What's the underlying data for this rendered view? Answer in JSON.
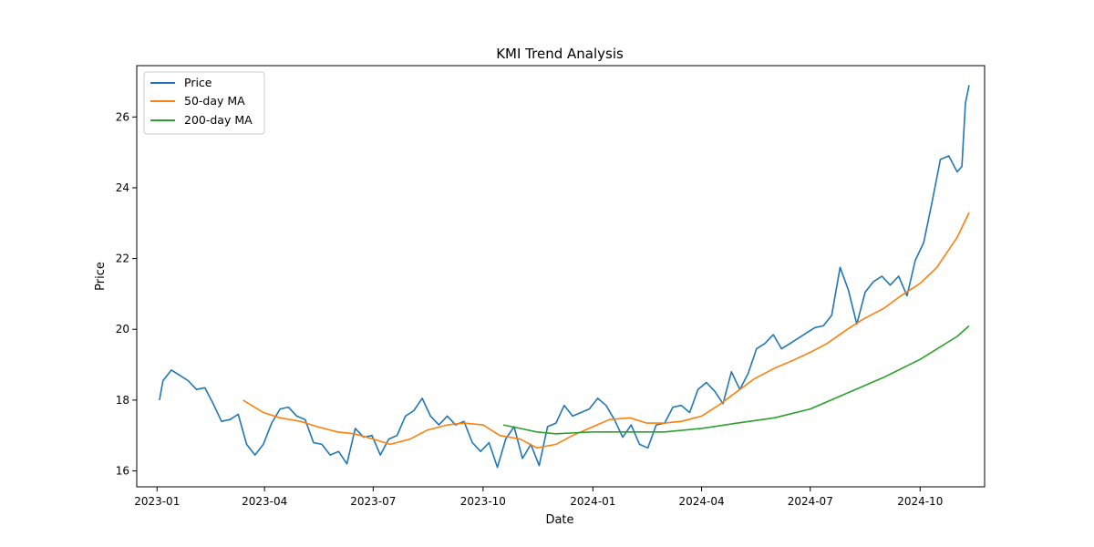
{
  "chart_data": {
    "type": "line",
    "title": "KMI Trend Analysis",
    "xlabel": "Date",
    "ylabel": "Price",
    "x_ticks": [
      "2023-01",
      "2023-04",
      "2023-07",
      "2023-10",
      "2024-01",
      "2024-04",
      "2024-07",
      "2024-10"
    ],
    "y_ticks": [
      16,
      18,
      20,
      22,
      24,
      26
    ],
    "xlim": [
      "2022-12-15",
      "2024-11-24"
    ],
    "ylim": [
      15.55,
      27.45
    ],
    "grid": false,
    "legend_position": "top-left",
    "series": [
      {
        "name": "Price",
        "color": "#1f77b4",
        "points": [
          [
            "2023-01-03",
            18.0
          ],
          [
            "2023-01-06",
            18.55
          ],
          [
            "2023-01-13",
            18.85
          ],
          [
            "2023-01-20",
            18.7
          ],
          [
            "2023-01-27",
            18.55
          ],
          [
            "2023-02-03",
            18.3
          ],
          [
            "2023-02-10",
            18.35
          ],
          [
            "2023-02-17",
            17.9
          ],
          [
            "2023-02-24",
            17.4
          ],
          [
            "2023-03-03",
            17.45
          ],
          [
            "2023-03-10",
            17.6
          ],
          [
            "2023-03-17",
            16.75
          ],
          [
            "2023-03-24",
            16.45
          ],
          [
            "2023-03-31",
            16.75
          ],
          [
            "2023-04-07",
            17.35
          ],
          [
            "2023-04-14",
            17.75
          ],
          [
            "2023-04-21",
            17.8
          ],
          [
            "2023-04-28",
            17.55
          ],
          [
            "2023-05-05",
            17.45
          ],
          [
            "2023-05-12",
            16.8
          ],
          [
            "2023-05-19",
            16.75
          ],
          [
            "2023-05-26",
            16.45
          ],
          [
            "2023-06-02",
            16.55
          ],
          [
            "2023-06-09",
            16.2
          ],
          [
            "2023-06-16",
            17.2
          ],
          [
            "2023-06-23",
            16.95
          ],
          [
            "2023-06-30",
            17.0
          ],
          [
            "2023-07-07",
            16.45
          ],
          [
            "2023-07-14",
            16.9
          ],
          [
            "2023-07-21",
            17.0
          ],
          [
            "2023-07-28",
            17.55
          ],
          [
            "2023-08-04",
            17.7
          ],
          [
            "2023-08-11",
            18.05
          ],
          [
            "2023-08-18",
            17.55
          ],
          [
            "2023-08-25",
            17.3
          ],
          [
            "2023-09-01",
            17.55
          ],
          [
            "2023-09-08",
            17.3
          ],
          [
            "2023-09-15",
            17.4
          ],
          [
            "2023-09-22",
            16.8
          ],
          [
            "2023-09-29",
            16.55
          ],
          [
            "2023-10-06",
            16.8
          ],
          [
            "2023-10-13",
            16.1
          ],
          [
            "2023-10-20",
            16.9
          ],
          [
            "2023-10-27",
            17.25
          ],
          [
            "2023-11-03",
            16.35
          ],
          [
            "2023-11-10",
            16.75
          ],
          [
            "2023-11-17",
            16.15
          ],
          [
            "2023-11-24",
            17.25
          ],
          [
            "2023-12-01",
            17.35
          ],
          [
            "2023-12-08",
            17.85
          ],
          [
            "2023-12-15",
            17.55
          ],
          [
            "2023-12-22",
            17.65
          ],
          [
            "2023-12-29",
            17.75
          ],
          [
            "2024-01-05",
            18.05
          ],
          [
            "2024-01-12",
            17.85
          ],
          [
            "2024-01-19",
            17.45
          ],
          [
            "2024-01-26",
            16.95
          ],
          [
            "2024-02-02",
            17.3
          ],
          [
            "2024-02-09",
            16.75
          ],
          [
            "2024-02-16",
            16.65
          ],
          [
            "2024-02-23",
            17.3
          ],
          [
            "2024-03-01",
            17.35
          ],
          [
            "2024-03-08",
            17.8
          ],
          [
            "2024-03-15",
            17.85
          ],
          [
            "2024-03-22",
            17.65
          ],
          [
            "2024-03-29",
            18.3
          ],
          [
            "2024-04-05",
            18.5
          ],
          [
            "2024-04-12",
            18.25
          ],
          [
            "2024-04-19",
            17.9
          ],
          [
            "2024-04-26",
            18.8
          ],
          [
            "2024-05-03",
            18.3
          ],
          [
            "2024-05-10",
            18.75
          ],
          [
            "2024-05-17",
            19.45
          ],
          [
            "2024-05-24",
            19.6
          ],
          [
            "2024-05-31",
            19.85
          ],
          [
            "2024-06-07",
            19.45
          ],
          [
            "2024-06-14",
            19.6
          ],
          [
            "2024-06-21",
            19.75
          ],
          [
            "2024-06-28",
            19.9
          ],
          [
            "2024-07-05",
            20.05
          ],
          [
            "2024-07-12",
            20.1
          ],
          [
            "2024-07-19",
            20.4
          ],
          [
            "2024-07-26",
            21.75
          ],
          [
            "2024-08-02",
            21.1
          ],
          [
            "2024-08-09",
            20.15
          ],
          [
            "2024-08-16",
            21.05
          ],
          [
            "2024-08-23",
            21.35
          ],
          [
            "2024-08-30",
            21.5
          ],
          [
            "2024-09-06",
            21.25
          ],
          [
            "2024-09-13",
            21.5
          ],
          [
            "2024-09-20",
            20.95
          ],
          [
            "2024-09-27",
            21.95
          ],
          [
            "2024-10-04",
            22.45
          ],
          [
            "2024-10-11",
            23.6
          ],
          [
            "2024-10-18",
            24.8
          ],
          [
            "2024-10-25",
            24.9
          ],
          [
            "2024-11-01",
            24.45
          ],
          [
            "2024-11-05",
            24.6
          ],
          [
            "2024-11-08",
            26.4
          ],
          [
            "2024-11-11",
            26.9
          ]
        ]
      },
      {
        "name": "50-day MA",
        "color": "#ff7f0e",
        "points": [
          [
            "2023-03-14",
            18.0
          ],
          [
            "2023-03-31",
            17.65
          ],
          [
            "2023-04-14",
            17.5
          ],
          [
            "2023-05-01",
            17.4
          ],
          [
            "2023-05-15",
            17.25
          ],
          [
            "2023-06-01",
            17.1
          ],
          [
            "2023-06-15",
            17.05
          ],
          [
            "2023-07-01",
            16.9
          ],
          [
            "2023-07-15",
            16.75
          ],
          [
            "2023-08-01",
            16.9
          ],
          [
            "2023-08-15",
            17.15
          ],
          [
            "2023-09-01",
            17.3
          ],
          [
            "2023-09-15",
            17.35
          ],
          [
            "2023-10-01",
            17.3
          ],
          [
            "2023-10-15",
            17.0
          ],
          [
            "2023-11-01",
            16.9
          ],
          [
            "2023-11-15",
            16.65
          ],
          [
            "2023-12-01",
            16.75
          ],
          [
            "2023-12-15",
            17.0
          ],
          [
            "2024-01-01",
            17.25
          ],
          [
            "2024-01-15",
            17.45
          ],
          [
            "2024-02-01",
            17.5
          ],
          [
            "2024-02-15",
            17.35
          ],
          [
            "2024-03-01",
            17.35
          ],
          [
            "2024-03-15",
            17.4
          ],
          [
            "2024-04-01",
            17.55
          ],
          [
            "2024-04-15",
            17.85
          ],
          [
            "2024-05-01",
            18.25
          ],
          [
            "2024-05-15",
            18.6
          ],
          [
            "2024-06-01",
            18.9
          ],
          [
            "2024-06-15",
            19.1
          ],
          [
            "2024-07-01",
            19.35
          ],
          [
            "2024-07-15",
            19.6
          ],
          [
            "2024-08-01",
            20.0
          ],
          [
            "2024-08-15",
            20.3
          ],
          [
            "2024-09-01",
            20.6
          ],
          [
            "2024-09-15",
            20.95
          ],
          [
            "2024-10-01",
            21.3
          ],
          [
            "2024-10-15",
            21.75
          ],
          [
            "2024-11-01",
            22.6
          ],
          [
            "2024-11-11",
            23.3
          ]
        ]
      },
      {
        "name": "200-day MA",
        "color": "#2ca02c",
        "points": [
          [
            "2023-10-18",
            17.3
          ],
          [
            "2023-11-01",
            17.2
          ],
          [
            "2023-11-15",
            17.1
          ],
          [
            "2023-12-01",
            17.05
          ],
          [
            "2024-01-01",
            17.1
          ],
          [
            "2024-02-01",
            17.1
          ],
          [
            "2024-03-01",
            17.1
          ],
          [
            "2024-04-01",
            17.2
          ],
          [
            "2024-05-01",
            17.35
          ],
          [
            "2024-06-01",
            17.5
          ],
          [
            "2024-07-01",
            17.75
          ],
          [
            "2024-08-01",
            18.2
          ],
          [
            "2024-09-01",
            18.65
          ],
          [
            "2024-10-01",
            19.15
          ],
          [
            "2024-11-01",
            19.8
          ],
          [
            "2024-11-11",
            20.1
          ]
        ]
      }
    ]
  }
}
